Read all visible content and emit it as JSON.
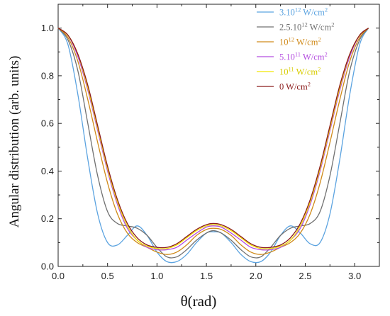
{
  "chart_data": {
    "type": "line",
    "title": "",
    "xlabel": "θ(rad)",
    "ylabel": "Angular distribution (arb. units)",
    "xlim": [
      0.0,
      3.25
    ],
    "ylim": [
      0.0,
      1.1
    ],
    "xticks": [
      "0.0",
      "0.5",
      "1.0",
      "1.5",
      "2.0",
      "2.5",
      "3.0"
    ],
    "yticks": [
      "0.0",
      "0.2",
      "0.4",
      "0.6",
      "0.8",
      "1.0"
    ],
    "grid": false,
    "legend_position": "top-right",
    "x": [
      0.0,
      0.1,
      0.2,
      0.3,
      0.4,
      0.5,
      0.6,
      0.7,
      0.8,
      0.9,
      1.0,
      1.1,
      1.2,
      1.3,
      1.4,
      1.5,
      1.57,
      1.65,
      1.75,
      1.85,
      1.95,
      2.05,
      2.15,
      2.25,
      2.35,
      2.45,
      2.55,
      2.65,
      2.75,
      2.85,
      2.95,
      3.05,
      3.14
    ],
    "series": [
      {
        "name_parts": [
          {
            "t": "3.10"
          },
          {
            "t": "12",
            "sup": true
          },
          {
            "t": " W/cm"
          },
          {
            "t": "2",
            "sup": true
          }
        ],
        "color": "#5ba3e0",
        "values": [
          1.0,
          0.93,
          0.72,
          0.45,
          0.22,
          0.1,
          0.09,
          0.13,
          0.17,
          0.13,
          0.06,
          0.02,
          0.02,
          0.05,
          0.1,
          0.14,
          0.145,
          0.14,
          0.1,
          0.05,
          0.02,
          0.02,
          0.06,
          0.13,
          0.17,
          0.14,
          0.095,
          0.1,
          0.22,
          0.45,
          0.72,
          0.93,
          1.0
        ]
      },
      {
        "name_parts": [
          {
            "t": "2.5.10"
          },
          {
            "t": "12",
            "sup": true
          },
          {
            "t": " W/cm"
          },
          {
            "t": "2",
            "sup": true
          }
        ],
        "color": "#707070",
        "values": [
          1.0,
          0.95,
          0.82,
          0.6,
          0.38,
          0.23,
          0.18,
          0.17,
          0.16,
          0.13,
          0.08,
          0.04,
          0.04,
          0.07,
          0.11,
          0.14,
          0.15,
          0.14,
          0.11,
          0.07,
          0.04,
          0.04,
          0.08,
          0.13,
          0.16,
          0.17,
          0.18,
          0.23,
          0.38,
          0.6,
          0.82,
          0.95,
          1.0
        ]
      },
      {
        "name_parts": [
          {
            "t": "10"
          },
          {
            "t": "12",
            "sup": true
          },
          {
            "t": " W/cm"
          },
          {
            "t": "2",
            "sup": true
          }
        ],
        "color": "#d08a1a",
        "values": [
          1.0,
          0.96,
          0.86,
          0.7,
          0.52,
          0.35,
          0.22,
          0.14,
          0.1,
          0.08,
          0.06,
          0.05,
          0.06,
          0.09,
          0.13,
          0.155,
          0.16,
          0.155,
          0.13,
          0.09,
          0.06,
          0.05,
          0.06,
          0.08,
          0.1,
          0.14,
          0.22,
          0.35,
          0.52,
          0.7,
          0.86,
          0.96,
          1.0
        ]
      },
      {
        "name_parts": [
          {
            "t": "5.10"
          },
          {
            "t": "11",
            "sup": true
          },
          {
            "t": " W/cm"
          },
          {
            "t": "2",
            "sup": true
          }
        ],
        "color": "#b44de0",
        "values": [
          1.0,
          0.97,
          0.88,
          0.74,
          0.57,
          0.4,
          0.26,
          0.16,
          0.11,
          0.08,
          0.07,
          0.07,
          0.08,
          0.11,
          0.14,
          0.165,
          0.17,
          0.165,
          0.14,
          0.11,
          0.08,
          0.07,
          0.07,
          0.08,
          0.11,
          0.16,
          0.26,
          0.4,
          0.57,
          0.74,
          0.88,
          0.97,
          1.0
        ]
      },
      {
        "name_parts": [
          {
            "t": "10"
          },
          {
            "t": "11",
            "sup": true
          },
          {
            "t": " W/cm"
          },
          {
            "t": "2",
            "sup": true
          }
        ],
        "color": "#f2e600",
        "values": [
          1.0,
          0.97,
          0.89,
          0.75,
          0.58,
          0.41,
          0.27,
          0.17,
          0.11,
          0.085,
          0.075,
          0.075,
          0.09,
          0.12,
          0.15,
          0.17,
          0.175,
          0.17,
          0.15,
          0.12,
          0.09,
          0.075,
          0.075,
          0.085,
          0.11,
          0.17,
          0.27,
          0.41,
          0.58,
          0.75,
          0.89,
          0.97,
          1.0
        ]
      },
      {
        "name_parts": [
          {
            "t": "0 W/cm"
          },
          {
            "t": "2",
            "sup": true
          }
        ],
        "color": "#8b1a1a",
        "values": [
          1.0,
          0.97,
          0.89,
          0.76,
          0.59,
          0.42,
          0.28,
          0.18,
          0.12,
          0.09,
          0.08,
          0.08,
          0.095,
          0.125,
          0.155,
          0.175,
          0.18,
          0.175,
          0.155,
          0.125,
          0.095,
          0.08,
          0.08,
          0.09,
          0.12,
          0.18,
          0.28,
          0.42,
          0.59,
          0.76,
          0.89,
          0.97,
          1.0
        ]
      }
    ]
  }
}
